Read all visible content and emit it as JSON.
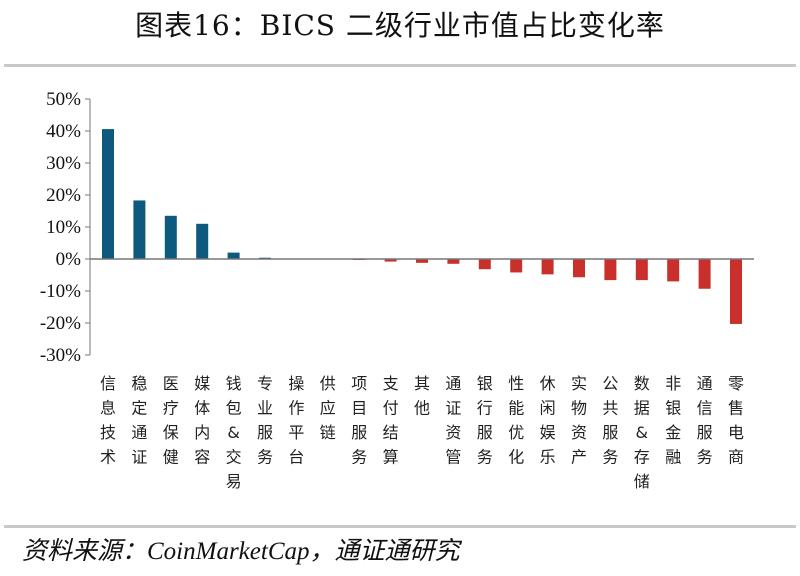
{
  "header": {
    "title": "图表16：BICS 二级行业市值占比变化率"
  },
  "footer": {
    "source": "资料来源：CoinMarketCap，通证通研究"
  },
  "colors": {
    "positive": "#0e5a7e",
    "negative": "#c9302c",
    "axis": "#777777"
  },
  "chart_data": {
    "type": "bar",
    "title": "图表16：BICS 二级行业市值占比变化率",
    "xlabel": "",
    "ylabel": "",
    "ylim": [
      -0.3,
      0.5
    ],
    "yticks": [
      "50%",
      "40%",
      "30%",
      "20%",
      "10%",
      "0%",
      "-10%",
      "-20%",
      "-30%"
    ],
    "grid": false,
    "legend": null,
    "categories": [
      "信息技术",
      "稳定通证",
      "医疗保健",
      "媒体内容",
      "钱包&交易",
      "专业服务",
      "操作平台",
      "供应链",
      "项目服务",
      "支付结算",
      "其他",
      "通证资管",
      "银行服务",
      "性能优化",
      "休闲娱乐",
      "实物资产",
      "公共服务",
      "数据&存储",
      "非银金融",
      "通信服务",
      "零售电商"
    ],
    "values": [
      0.406,
      0.183,
      0.135,
      0.11,
      0.02,
      0.004,
      0.0,
      0.0,
      -0.003,
      -0.008,
      -0.012,
      -0.015,
      -0.032,
      -0.042,
      -0.048,
      -0.057,
      -0.066,
      -0.066,
      -0.07,
      -0.093,
      -0.203
    ]
  }
}
